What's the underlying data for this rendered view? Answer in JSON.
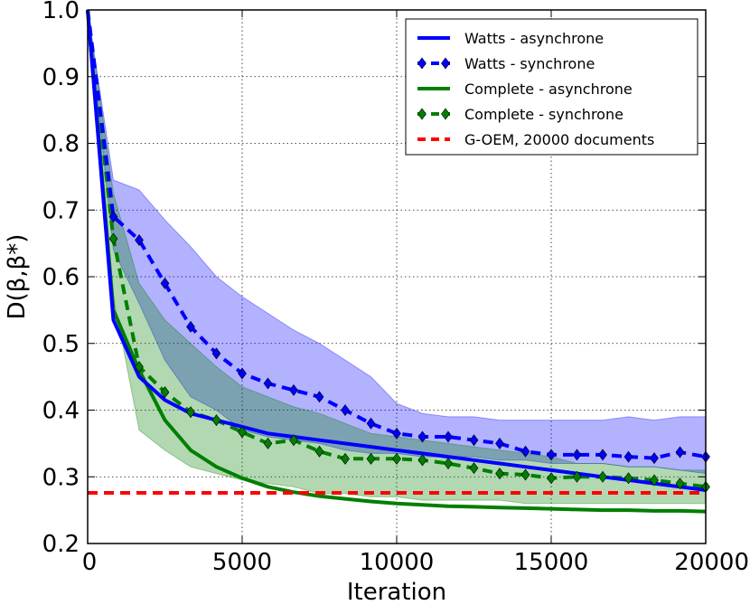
{
  "chart_data": {
    "type": "line",
    "title": "",
    "xlabel": "Iteration",
    "ylabel": "D(β,β*)",
    "xlim": [
      0,
      20000
    ],
    "ylim": [
      0.2,
      1.0
    ],
    "xticks": [
      0,
      5000,
      10000,
      15000,
      20000
    ],
    "xtick_labels": [
      "0",
      "5000",
      "10000",
      "15000",
      "20000"
    ],
    "yticks": [
      0.2,
      0.3,
      0.4,
      0.5,
      0.6,
      0.7,
      0.8,
      0.9,
      1.0
    ],
    "ytick_labels": [
      "0.2",
      "0.3",
      "0.4",
      "0.5",
      "0.6",
      "0.7",
      "0.8",
      "0.9",
      "1.0"
    ],
    "grid": true,
    "legend_position": "top-right",
    "colors": {
      "watts": "#0000ff",
      "complete": "#007f00",
      "goem": "#ff0000"
    },
    "bands": [
      {
        "name": "Watts - synchrone band",
        "color": "#0000ff",
        "x": [
          0,
          833,
          1667,
          2500,
          3333,
          4167,
          5000,
          5833,
          6667,
          7500,
          8333,
          9167,
          10000,
          10833,
          11667,
          12500,
          13333,
          14167,
          15000,
          15833,
          16667,
          17500,
          18333,
          19167,
          20000
        ],
        "upper": [
          1.0,
          0.745,
          0.73,
          0.685,
          0.645,
          0.6,
          0.57,
          0.545,
          0.52,
          0.5,
          0.475,
          0.45,
          0.41,
          0.395,
          0.39,
          0.39,
          0.385,
          0.385,
          0.385,
          0.385,
          0.385,
          0.39,
          0.385,
          0.39,
          0.39
        ],
        "lower": [
          1.0,
          0.64,
          0.56,
          0.475,
          0.42,
          0.4,
          0.37,
          0.36,
          0.355,
          0.35,
          0.34,
          0.335,
          0.335,
          0.33,
          0.33,
          0.33,
          0.325,
          0.325,
          0.32,
          0.32,
          0.32,
          0.315,
          0.315,
          0.31,
          0.305
        ]
      },
      {
        "name": "Complete - synchrone band",
        "color": "#007f00",
        "x": [
          0,
          833,
          1667,
          2500,
          3333,
          4167,
          5000,
          5833,
          6667,
          7500,
          8333,
          9167,
          10000,
          10833,
          11667,
          12500,
          13333,
          14167,
          15000,
          15833,
          16667,
          17500,
          18333,
          19167,
          20000
        ],
        "upper": [
          1.0,
          0.725,
          0.59,
          0.535,
          0.5,
          0.465,
          0.435,
          0.42,
          0.405,
          0.395,
          0.38,
          0.365,
          0.36,
          0.355,
          0.35,
          0.345,
          0.34,
          0.335,
          0.33,
          0.32,
          0.32,
          0.315,
          0.315,
          0.31,
          0.31
        ],
        "lower": [
          1.0,
          0.57,
          0.37,
          0.34,
          0.315,
          0.305,
          0.295,
          0.29,
          0.285,
          0.275,
          0.275,
          0.27,
          0.27,
          0.265,
          0.265,
          0.265,
          0.265,
          0.26,
          0.26,
          0.26,
          0.26,
          0.26,
          0.26,
          0.26,
          0.26
        ]
      }
    ],
    "series": [
      {
        "name": "Watts - asynchrone",
        "color": "#0000ff",
        "style": "solid",
        "marker": "none",
        "x": [
          0,
          833,
          1667,
          2500,
          3333,
          4167,
          5000,
          5833,
          6667,
          7500,
          8333,
          9167,
          10000,
          10833,
          11667,
          12500,
          13333,
          14167,
          15000,
          15833,
          16667,
          17500,
          18333,
          19167,
          20000
        ],
        "values": [
          1.0,
          0.535,
          0.45,
          0.415,
          0.395,
          0.385,
          0.375,
          0.365,
          0.36,
          0.355,
          0.35,
          0.345,
          0.34,
          0.335,
          0.33,
          0.325,
          0.32,
          0.315,
          0.31,
          0.305,
          0.3,
          0.295,
          0.29,
          0.285,
          0.28
        ]
      },
      {
        "name": "Watts - synchrone",
        "color": "#0000ff",
        "style": "dashed",
        "marker": "diamond",
        "x": [
          0,
          833,
          1667,
          2500,
          3333,
          4167,
          5000,
          5833,
          6667,
          7500,
          8333,
          9167,
          10000,
          10833,
          11667,
          12500,
          13333,
          14167,
          15000,
          15833,
          16667,
          17500,
          18333,
          19167,
          20000
        ],
        "values": [
          1.0,
          0.69,
          0.655,
          0.59,
          0.525,
          0.485,
          0.455,
          0.44,
          0.43,
          0.42,
          0.4,
          0.38,
          0.365,
          0.36,
          0.36,
          0.355,
          0.35,
          0.338,
          0.333,
          0.333,
          0.333,
          0.33,
          0.328,
          0.337,
          0.33
        ]
      },
      {
        "name": "Complete - asynchrone",
        "color": "#007f00",
        "style": "solid",
        "marker": "none",
        "x": [
          0,
          833,
          1667,
          2500,
          3333,
          4167,
          5000,
          5833,
          6667,
          7500,
          8333,
          9167,
          10000,
          10833,
          11667,
          12500,
          13333,
          14167,
          15000,
          15833,
          16667,
          17500,
          18333,
          19167,
          20000
        ],
        "values": [
          1.0,
          0.55,
          0.46,
          0.385,
          0.34,
          0.315,
          0.298,
          0.285,
          0.277,
          0.271,
          0.267,
          0.263,
          0.26,
          0.258,
          0.256,
          0.255,
          0.254,
          0.253,
          0.252,
          0.251,
          0.25,
          0.25,
          0.249,
          0.249,
          0.248
        ]
      },
      {
        "name": "Complete - synchrone",
        "color": "#007f00",
        "style": "dashed",
        "marker": "diamond",
        "x": [
          0,
          833,
          1667,
          2500,
          3333,
          4167,
          5000,
          5833,
          6667,
          7500,
          8333,
          9167,
          10000,
          10833,
          11667,
          12500,
          13333,
          14167,
          15000,
          15833,
          16667,
          17500,
          18333,
          19167,
          20000
        ],
        "values": [
          1.0,
          0.657,
          0.465,
          0.427,
          0.397,
          0.385,
          0.367,
          0.35,
          0.355,
          0.338,
          0.327,
          0.327,
          0.327,
          0.325,
          0.32,
          0.313,
          0.305,
          0.303,
          0.298,
          0.3,
          0.3,
          0.298,
          0.295,
          0.29,
          0.285
        ]
      },
      {
        "name": "G-OEM, 20000 documents",
        "color": "#ff0000",
        "style": "dashed",
        "marker": "none",
        "x": [
          0,
          20000
        ],
        "values": [
          0.276,
          0.276
        ]
      }
    ]
  }
}
